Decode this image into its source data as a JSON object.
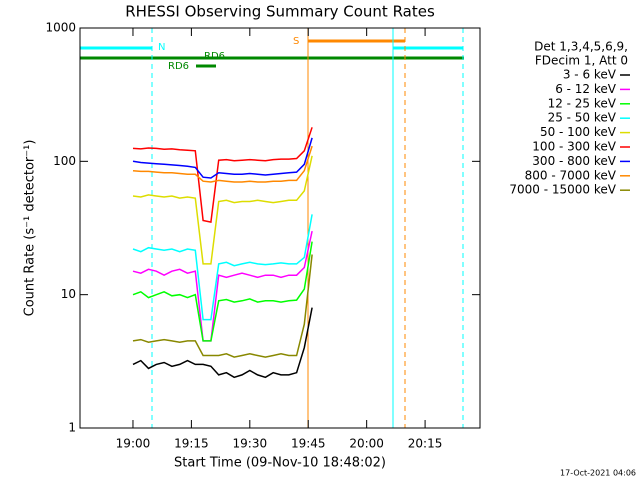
{
  "chart_data": {
    "type": "line",
    "title": "RHESSI Observing Summary Count Rates",
    "x_label": "Start Time (09-Nov-10 18:48:02)",
    "y_label": "Count Rate (s⁻¹ detector⁻¹)",
    "legend_header": [
      "Det 1,3,4,5,6,9,",
      "FDecim 1, Att 0"
    ],
    "footer": "17-Oct-2021 04:06",
    "annotations": [
      "N",
      "S",
      "RD6",
      "RD6"
    ],
    "log_y": true,
    "xlim": [
      1126.4,
      1229.1
    ],
    "xticks": [
      {
        "value": 1140,
        "label": "19:00"
      },
      {
        "value": 1155,
        "label": "19:15"
      },
      {
        "value": 1170,
        "label": "19:30"
      },
      {
        "value": 1185,
        "label": "19:45"
      },
      {
        "value": 1200,
        "label": "20:00"
      },
      {
        "value": 1215,
        "label": "20:15"
      }
    ],
    "ylim": [
      1,
      1000
    ],
    "yticks": [
      1,
      10,
      100,
      1000
    ],
    "x": [
      1140,
      1142,
      1144,
      1146,
      1148,
      1150,
      1152,
      1154,
      1156,
      1158,
      1160,
      1162,
      1164,
      1166,
      1168,
      1170,
      1172,
      1174,
      1176,
      1178,
      1180,
      1182,
      1184,
      1186
    ],
    "series": [
      {
        "name": "3 - 6 keV",
        "color": "#000000",
        "values": [
          3,
          3.2,
          2.8,
          3,
          3.1,
          2.9,
          3,
          3.2,
          3,
          3,
          2.9,
          2.5,
          2.6,
          2.4,
          2.5,
          2.7,
          2.5,
          2.4,
          2.6,
          2.5,
          2.5,
          2.6,
          4,
          8
        ]
      },
      {
        "name": "6 - 12 keV",
        "color": "#ff00ff",
        "values": [
          15,
          14.5,
          15.5,
          15,
          14,
          15,
          15.5,
          14.5,
          15,
          4.5,
          4.5,
          14,
          13.5,
          14,
          14.5,
          14,
          13.5,
          14,
          14,
          13.5,
          14,
          14,
          16,
          30
        ]
      },
      {
        "name": "12 - 25 keV",
        "color": "#00ff00",
        "values": [
          10,
          10.5,
          9.5,
          10,
          10.5,
          9.8,
          10,
          9.5,
          10,
          4.5,
          4.5,
          9,
          9.2,
          8.8,
          9,
          9.3,
          8.8,
          9,
          9,
          8.8,
          9,
          9.1,
          11,
          25
        ]
      },
      {
        "name": "25 - 50 keV",
        "color": "#00ffff",
        "values": [
          22,
          21,
          22.5,
          22,
          21.5,
          22,
          21,
          22,
          21.5,
          6.5,
          6.5,
          17,
          17.5,
          16.5,
          17,
          17.5,
          17,
          16.8,
          17,
          17.3,
          17,
          17,
          19,
          40
        ]
      },
      {
        "name": "50 - 100 keV",
        "color": "#dddd00",
        "values": [
          55,
          54,
          56,
          55,
          54,
          55,
          53,
          54,
          53,
          17,
          17,
          50,
          51,
          49,
          50,
          50,
          51,
          50,
          49,
          50,
          51,
          51,
          60,
          110
        ]
      },
      {
        "name": "100 - 300 keV",
        "color": "#ff0000",
        "values": [
          125,
          124,
          126,
          125,
          123,
          124,
          122,
          121,
          120,
          36,
          35,
          102,
          103,
          101,
          102,
          103,
          102,
          101,
          103,
          104,
          104,
          105,
          120,
          180
        ]
      },
      {
        "name": "300 - 800 keV",
        "color": "#0000ff",
        "values": [
          100,
          98,
          97,
          96,
          95,
          94,
          93,
          92,
          90,
          76,
          75,
          82,
          81,
          80,
          80,
          81,
          80,
          79,
          80,
          81,
          82,
          83,
          95,
          150
        ]
      },
      {
        "name": "800 - 7000 keV",
        "color": "#ff8800",
        "values": [
          85,
          84,
          84,
          83,
          82,
          82,
          81,
          80,
          80,
          71,
          70,
          72,
          71,
          70,
          70,
          71,
          70,
          70,
          71,
          71,
          72,
          72,
          85,
          130
        ]
      },
      {
        "name": "7000 - 15000 keV",
        "color": "#888800",
        "values": [
          4.5,
          4.6,
          4.4,
          4.5,
          4.6,
          4.5,
          4.4,
          4.5,
          4.5,
          3.5,
          3.5,
          3.5,
          3.6,
          3.4,
          3.5,
          3.6,
          3.5,
          3.4,
          3.5,
          3.6,
          3.5,
          3.5,
          6,
          20
        ]
      }
    ]
  }
}
